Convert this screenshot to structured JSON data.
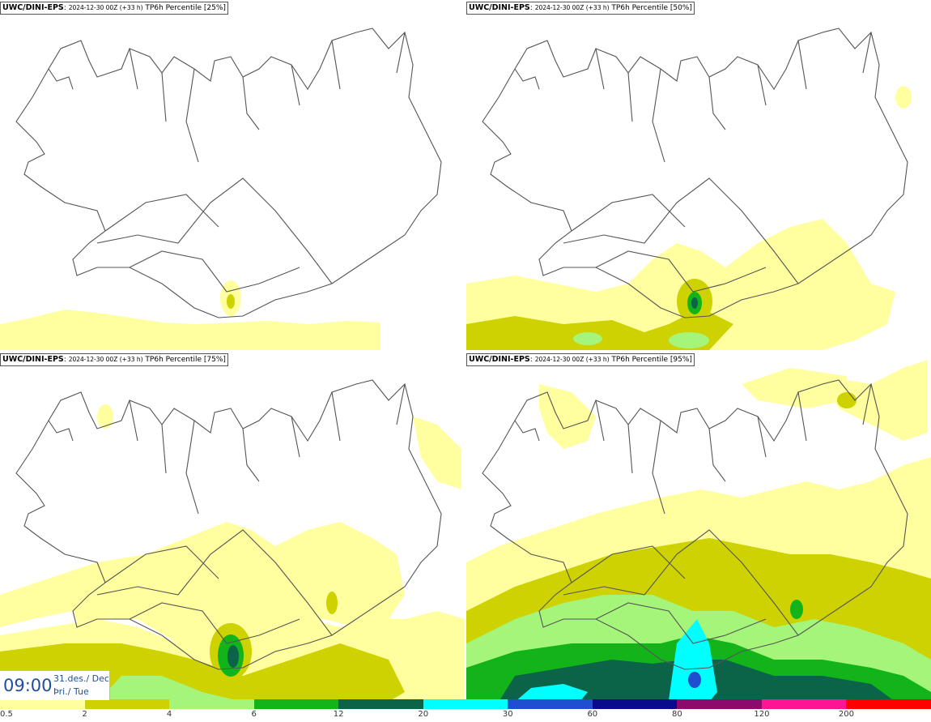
{
  "panels": [
    {
      "id": "p25",
      "model": "UWC/DINI-EPS",
      "run": "2024-12-30 00Z (+33 h)",
      "field": "TP6h Percentile [25%]"
    },
    {
      "id": "p50",
      "model": "UWC/DINI-EPS",
      "run": "2024-12-30 00Z (+33 h)",
      "field": "TP6h Percentile [50%]"
    },
    {
      "id": "p75",
      "model": "UWC/DINI-EPS",
      "run": "2024-12-30 00Z (+33 h)",
      "field": "TP6h Percentile [75%]"
    },
    {
      "id": "p95",
      "model": "UWC/DINI-EPS",
      "run": "2024-12-30 00Z (+33 h)",
      "field": "TP6h Percentile [95%]"
    }
  ],
  "valid_time": {
    "time": "09:00",
    "date": "31.des./ Dec",
    "day": "Þri./ Tue"
  },
  "legend": {
    "labels": [
      "0.5",
      "2",
      "4",
      "6",
      "12",
      "20",
      "30",
      "60",
      "80",
      "120",
      "200"
    ],
    "colors": [
      "#ffff9f",
      "#cdd200",
      "#a4f57a",
      "#13b41a",
      "#0b6448",
      "#00ffff",
      "#1f4fd0",
      "#0a0a8c",
      "#8c0a6e",
      "#ff1493",
      "#ff0000"
    ]
  },
  "colors": {
    "c1": "#ffff9f",
    "c2": "#cdd200",
    "c3": "#a4f57a",
    "c4": "#13b41a",
    "c5": "#0b6448",
    "c6": "#00ffff",
    "c7": "#1f4fd0",
    "coast": "#555555"
  }
}
